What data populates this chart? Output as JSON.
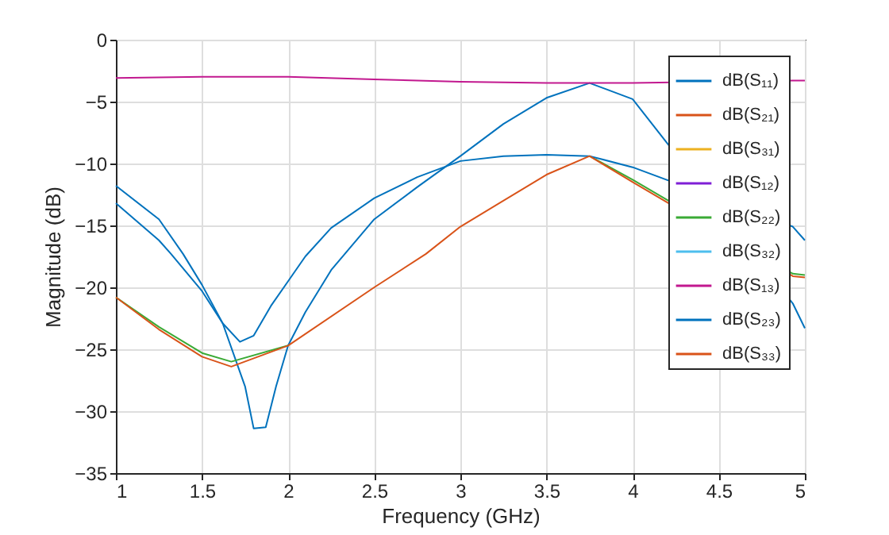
{
  "chart_data": {
    "type": "line",
    "xlabel": "Frequency (GHz)",
    "ylabel": "Magnitude (dB)",
    "xlim": [
      1,
      5
    ],
    "xticks": [
      1,
      1.5,
      2,
      2.5,
      3,
      3.5,
      4,
      4.5,
      5
    ],
    "ylim": [
      -35,
      0
    ],
    "yticks": [
      -35,
      -30,
      -25,
      -20,
      -15,
      -10,
      -5,
      0
    ],
    "grid": true,
    "legend": "top right",
    "series": [
      {
        "name": "dB(S₁₁)",
        "color": "#0072bd",
        "x": [
          1,
          1.25,
          1.32,
          1.5,
          1.62,
          1.75,
          1.8,
          1.87,
          1.93,
          2,
          2.1,
          2.25,
          2.5,
          2.75,
          3,
          3.25,
          3.5,
          3.75,
          4,
          4.93,
          5
        ],
        "values": [
          -13.2,
          -16.2,
          -17.3,
          -20.3,
          -22.9,
          -28,
          -31.4,
          -31.3,
          -28,
          -24.7,
          -22,
          -18.6,
          -14.5,
          -11.9,
          -9.4,
          -6.8,
          -4.7,
          -3.5,
          -4.8,
          -21.3,
          -23.3
        ]
      },
      {
        "name": "dB(S₂₁)",
        "color": "#d95319",
        "values": [
          null,
          null,
          null,
          null,
          null,
          null,
          null,
          null,
          null
        ]
      },
      {
        "name": "dB(S₃₁)",
        "color": "#edb120",
        "values": [
          null,
          null,
          null,
          null,
          null,
          null,
          null,
          null,
          null
        ]
      },
      {
        "name": "dB(S₁₂)",
        "color": "#7f1fd6",
        "values": [
          null,
          null,
          null,
          null,
          null,
          null,
          null,
          null,
          null
        ]
      },
      {
        "name": "dB(S₂₂)",
        "color": "#3aaa35",
        "x": [
          1,
          1.25,
          1.5,
          1.67,
          2,
          2.5,
          2.8,
          3,
          3.5,
          3.75,
          4,
          4.93,
          5
        ],
        "values": [
          -20.8,
          -23.2,
          -25.3,
          -26,
          -24.7,
          null,
          null,
          null,
          null,
          -9.4,
          -11.3,
          -18.9,
          -19
        ]
      },
      {
        "name": "dB(S₃₂)",
        "color": "#4dbeee",
        "values": [
          null,
          null,
          null,
          null,
          null,
          null,
          null,
          null,
          null,
          null,
          null,
          null,
          null,
          null,
          null,
          null,
          null,
          null,
          null,
          null
        ]
      },
      {
        "name": "dB(S₁₃)",
        "color": "#c2188f",
        "x": [
          1,
          1.5,
          2,
          2.5,
          3,
          3.5,
          4,
          4.93,
          5
        ],
        "values": [
          -3.1,
          -3,
          -3,
          -3.2,
          -3.4,
          -3.5,
          -3.5,
          -3.3,
          -3.3
        ]
      },
      {
        "name": "dB(S₂₃)",
        "color": "#0072bd",
        "x": [
          1,
          1.25,
          1.39,
          1.5,
          1.62,
          1.72,
          1.8,
          1.9,
          2,
          2.1,
          2.25,
          2.5,
          2.75,
          3,
          3.25,
          3.5,
          3.75,
          4,
          4.93,
          5
        ],
        "values": [
          -11.8,
          -14.5,
          -17.3,
          -19.8,
          -22.9,
          -24.4,
          -23.9,
          -21.5,
          -19.5,
          -17.5,
          -15.2,
          -12.8,
          -11.1,
          -9.8,
          -9.4,
          -9.3,
          -9.4,
          -10.3,
          -15.1,
          -16.2
        ]
      },
      {
        "name": "dB(S₃₃)",
        "color": "#d95319",
        "x": [
          1,
          1.25,
          1.5,
          1.67,
          2,
          2.5,
          2.8,
          3,
          3.5,
          3.75,
          4,
          4.93,
          5
        ],
        "values": [
          -20.8,
          -23.4,
          -25.6,
          -26.4,
          -24.7,
          -20,
          -17.3,
          -15.1,
          -10.9,
          -9.4,
          -11.5,
          -19.1,
          -19.2
        ]
      }
    ]
  }
}
